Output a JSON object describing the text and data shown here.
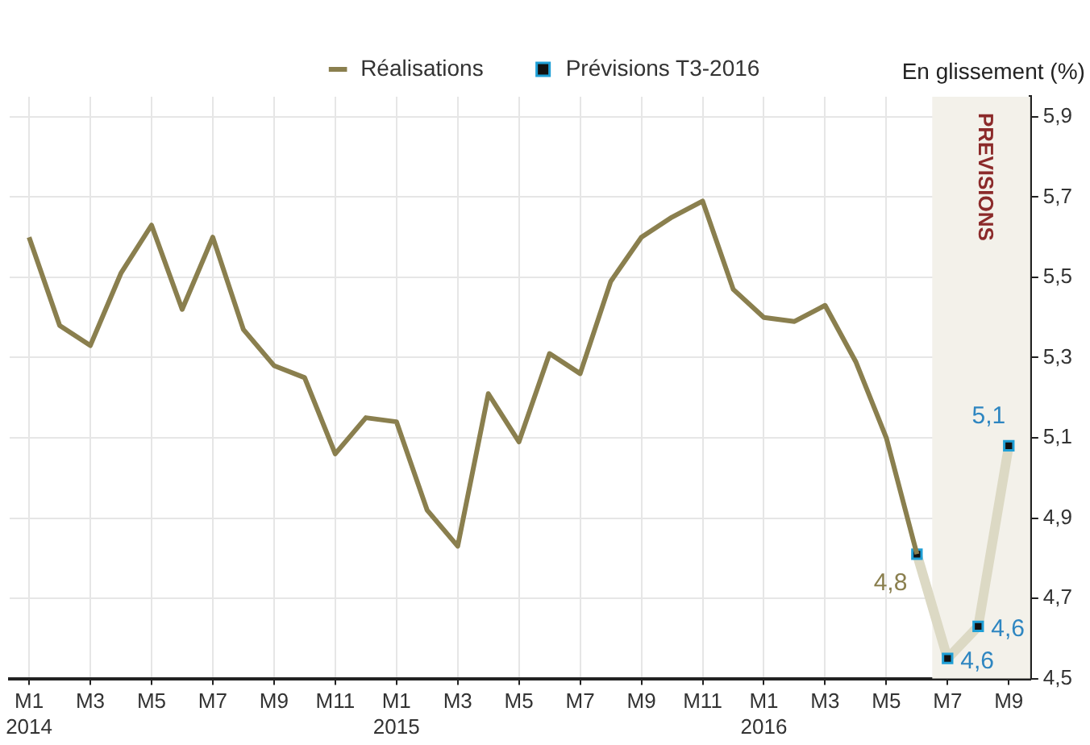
{
  "chart_data": {
    "type": "line",
    "ylabel": "En glissement (%)",
    "x": [
      "2014-01",
      "2014-02",
      "2014-03",
      "2014-04",
      "2014-05",
      "2014-06",
      "2014-07",
      "2014-08",
      "2014-09",
      "2014-10",
      "2014-11",
      "2014-12",
      "2015-01",
      "2015-02",
      "2015-03",
      "2015-04",
      "2015-05",
      "2015-06",
      "2015-07",
      "2015-08",
      "2015-09",
      "2015-10",
      "2015-11",
      "2015-12",
      "2016-01",
      "2016-02",
      "2016-03",
      "2016-04",
      "2016-05",
      "2016-06",
      "2016-07",
      "2016-08",
      "2016-09"
    ],
    "series": [
      {
        "name": "Réalisations",
        "color": "#8a7f4e",
        "marker": "none",
        "values": [
          5.6,
          5.38,
          5.33,
          5.51,
          5.63,
          5.42,
          5.6,
          5.37,
          5.28,
          5.25,
          5.06,
          5.15,
          5.14,
          4.92,
          4.83,
          5.21,
          5.09,
          5.31,
          5.26,
          5.49,
          5.6,
          5.65,
          5.69,
          5.47,
          5.4,
          5.39,
          5.43,
          5.29,
          5.1,
          4.81,
          null,
          null,
          null
        ],
        "value_labels": [
          null,
          null,
          null,
          null,
          null,
          null,
          null,
          null,
          null,
          null,
          null,
          null,
          null,
          null,
          null,
          null,
          null,
          null,
          null,
          null,
          null,
          null,
          null,
          null,
          null,
          null,
          null,
          null,
          null,
          "4,8",
          null,
          null,
          null
        ]
      },
      {
        "name": "Prévisions T3-2016",
        "color": "#dcd9c4",
        "marker": "square",
        "values": [
          null,
          null,
          null,
          null,
          null,
          null,
          null,
          null,
          null,
          null,
          null,
          null,
          null,
          null,
          null,
          null,
          null,
          null,
          null,
          null,
          null,
          null,
          null,
          null,
          null,
          null,
          null,
          null,
          null,
          4.81,
          4.55,
          4.63,
          5.08
        ],
        "value_labels": [
          null,
          null,
          null,
          null,
          null,
          null,
          null,
          null,
          null,
          null,
          null,
          null,
          null,
          null,
          null,
          null,
          null,
          null,
          null,
          null,
          null,
          null,
          null,
          null,
          null,
          null,
          null,
          null,
          null,
          null,
          "4,6",
          "4,6",
          "5,1"
        ]
      }
    ],
    "xlim": [
      "2013-12-12",
      "2016-09-22"
    ],
    "xticks": [
      {
        "value": "2014-01",
        "label": "M1\n2014"
      },
      {
        "value": "2014-03",
        "label": "M3"
      },
      {
        "value": "2014-05",
        "label": "M5"
      },
      {
        "value": "2014-07",
        "label": "M7"
      },
      {
        "value": "2014-09",
        "label": "M9"
      },
      {
        "value": "2014-11",
        "label": "M11"
      },
      {
        "value": "2015-01",
        "label": "M1\n2015"
      },
      {
        "value": "2015-03",
        "label": "M3"
      },
      {
        "value": "2015-05",
        "label": "M5"
      },
      {
        "value": "2015-07",
        "label": "M7"
      },
      {
        "value": "2015-09",
        "label": "M9"
      },
      {
        "value": "2015-11",
        "label": "M11"
      },
      {
        "value": "2016-01",
        "label": "M1\n2016"
      },
      {
        "value": "2016-03",
        "label": "M3"
      },
      {
        "value": "2016-05",
        "label": "M5"
      },
      {
        "value": "2016-07",
        "label": "M7"
      },
      {
        "value": "2016-09",
        "label": "M9"
      }
    ],
    "ylim": [
      4.5,
      5.95
    ],
    "yticks": [
      {
        "value": 4.5,
        "label": "4,5"
      },
      {
        "value": 4.7,
        "label": "4,7"
      },
      {
        "value": 4.9,
        "label": "4,9"
      },
      {
        "value": 5.1,
        "label": "5,1"
      },
      {
        "value": 5.3,
        "label": "5,3"
      },
      {
        "value": 5.5,
        "label": "5,5"
      },
      {
        "value": 5.7,
        "label": "5,7"
      },
      {
        "value": 5.9,
        "label": "5,9"
      }
    ],
    "bands": [
      {
        "axis": "x",
        "from": "2016-06-16",
        "to": "2016-09-22",
        "label": "PREVISIONS",
        "color": "#f3f1ea"
      }
    ],
    "grid": true,
    "legend": "top",
    "line_style": "solid"
  }
}
